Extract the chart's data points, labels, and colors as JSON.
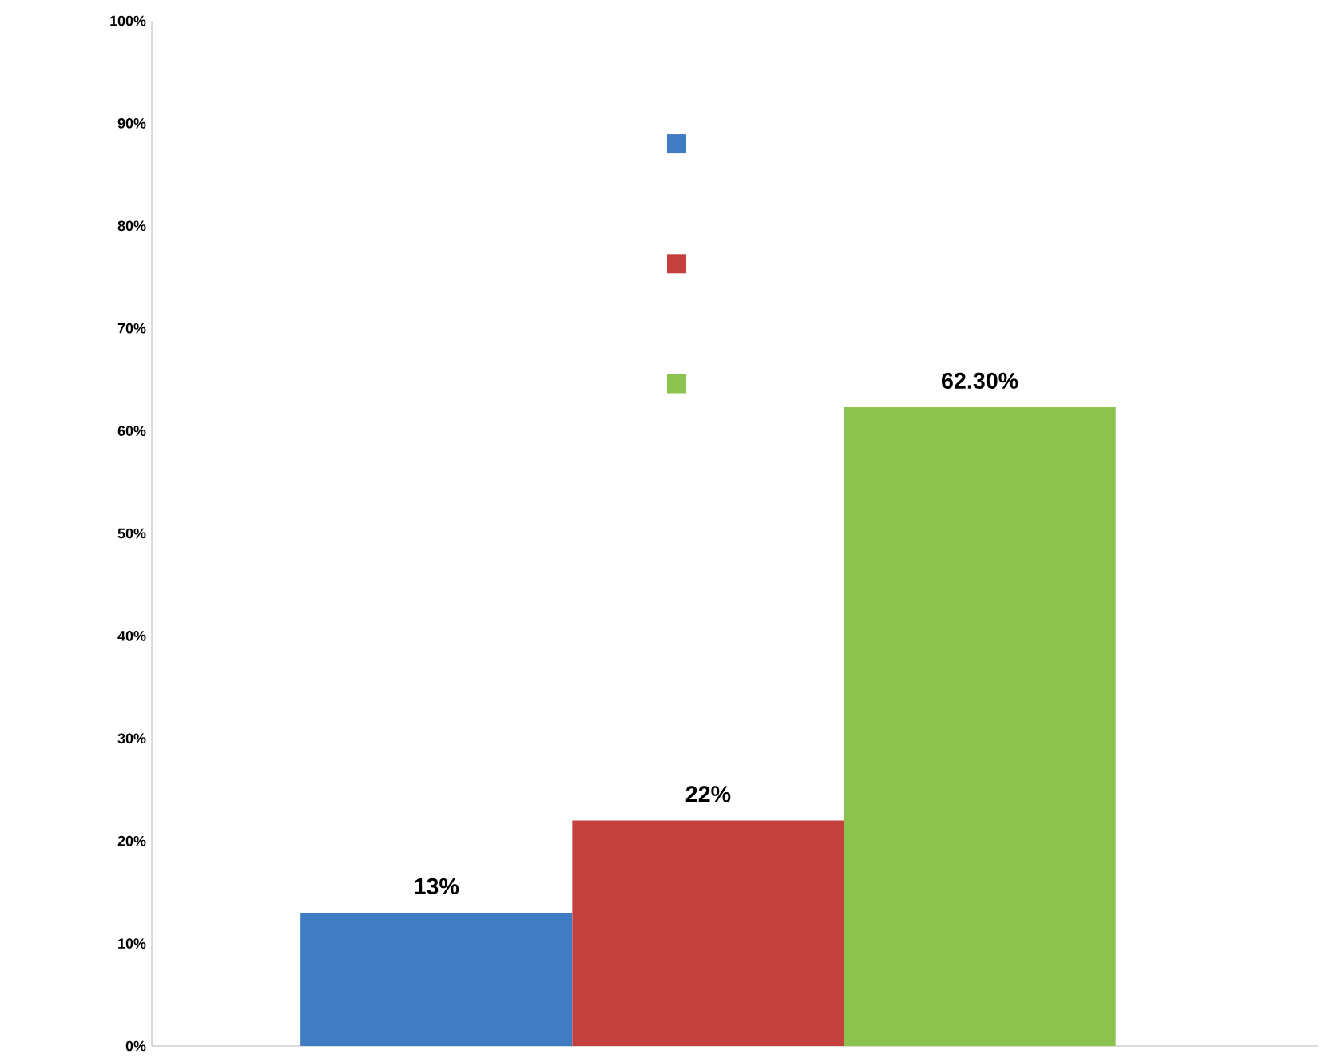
{
  "chart_data": {
    "type": "bar",
    "categories": [
      null
    ],
    "series": [
      {
        "color": "#3f7cc4",
        "values": [
          13
        ],
        "value_labels": [
          "13%"
        ]
      },
      {
        "color": "#c4403e",
        "values": [
          22
        ],
        "value_labels": [
          "22%"
        ]
      },
      {
        "color": "#8cc34f",
        "values": [
          62.3
        ],
        "value_labels": [
          "62.30%"
        ]
      }
    ],
    "ylim": [
      0,
      100
    ],
    "yticks": [
      {
        "value": 0,
        "label": "0%"
      },
      {
        "value": 10,
        "label": "10%"
      },
      {
        "value": 20,
        "label": "20%"
      },
      {
        "value": 30,
        "label": "30%"
      },
      {
        "value": 40,
        "label": "40%"
      },
      {
        "value": 50,
        "label": "50%"
      },
      {
        "value": 60,
        "label": "60%"
      },
      {
        "value": 70,
        "label": "70%"
      },
      {
        "value": 80,
        "label": "80%"
      },
      {
        "value": 90,
        "label": "90%"
      },
      {
        "value": 100,
        "label": "100%"
      }
    ],
    "tick_labels": "y",
    "grid": false
  }
}
